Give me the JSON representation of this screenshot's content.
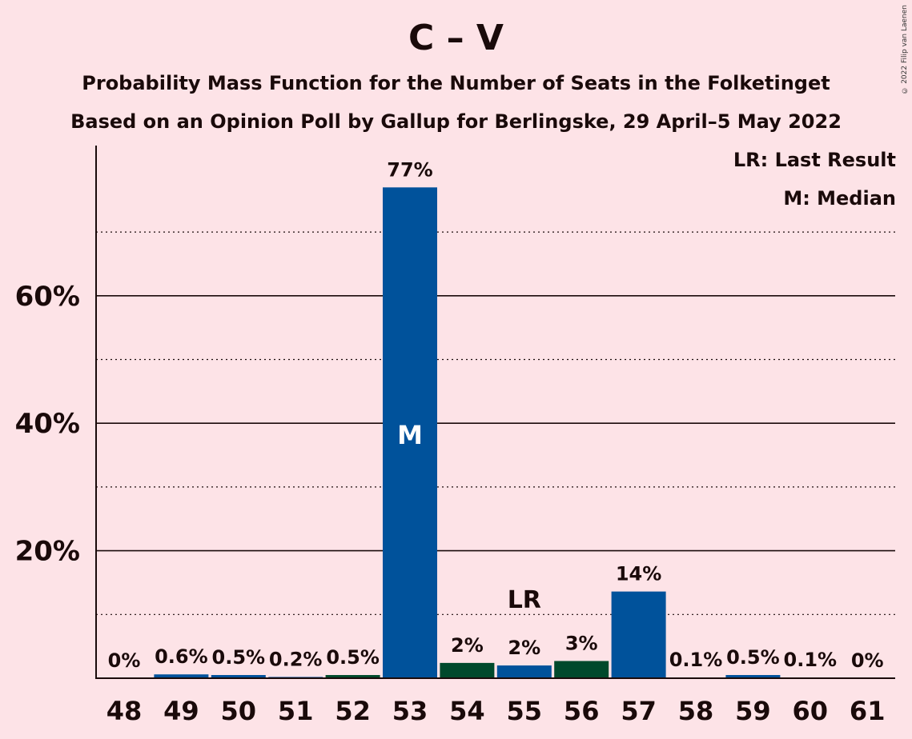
{
  "title": "C – V",
  "subtitle1": "Probability Mass Function for the Number of Seats in the Folketinget",
  "subtitle2": "Based on an Opinion Poll by Gallup for Berlingske, 29 April–5 May 2022",
  "copyright": "© 2022 Filip van Laenen",
  "legend": {
    "lr": "LR: Last Result",
    "m": "M: Median"
  },
  "colors": {
    "background": "#fde3e7",
    "blue": "#00529b",
    "green": "#00492c"
  },
  "chart_data": {
    "type": "bar",
    "categories": [
      "48",
      "49",
      "50",
      "51",
      "52",
      "53",
      "54",
      "55",
      "56",
      "57",
      "58",
      "59",
      "60",
      "61"
    ],
    "values": [
      0,
      0.6,
      0.5,
      0.2,
      0.5,
      77,
      2.4,
      2.0,
      2.7,
      13.6,
      0.1,
      0.5,
      0.1,
      0
    ],
    "labels": [
      "0%",
      "0.6%",
      "0.5%",
      "0.2%",
      "0.5%",
      "77%",
      "2%",
      "2%",
      "3%",
      "14%",
      "0.1%",
      "0.5%",
      "0.1%",
      "0%"
    ],
    "bar_colors": [
      "blue",
      "blue",
      "blue",
      "blue",
      "green",
      "blue",
      "green",
      "blue",
      "green",
      "blue",
      "blue",
      "blue",
      "blue",
      "blue"
    ],
    "median_category": "53",
    "median_marker": "M",
    "last_result_category": "55",
    "last_result_marker": "LR",
    "yticks": [
      20,
      40,
      60
    ],
    "ytick_labels": [
      "20%",
      "40%",
      "60%"
    ],
    "ylim": [
      0,
      82
    ],
    "grid": "solid at 20% steps, dotted at 10% steps"
  }
}
